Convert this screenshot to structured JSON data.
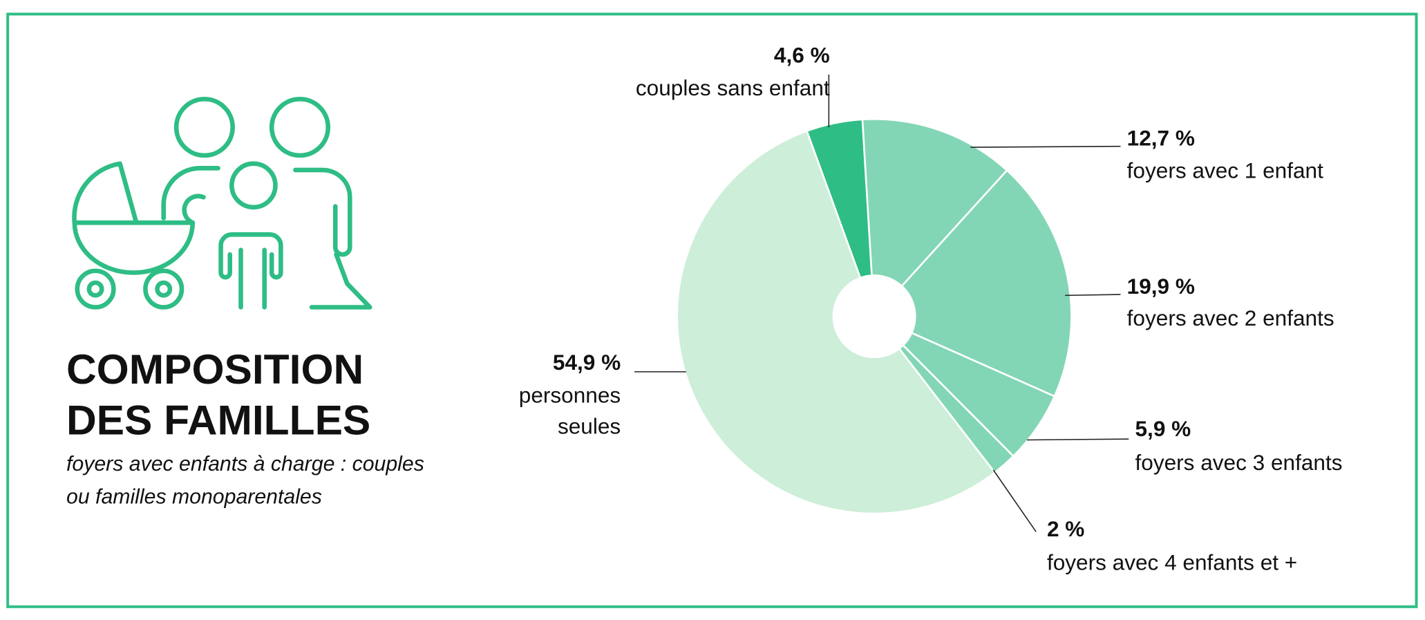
{
  "chart_data": {
    "type": "pie",
    "title": "COMPOSITION DES FAMILLES",
    "subtitle": "foyers avec enfants à charge : couples ou familles monoparentales",
    "categories": [
      "couples sans enfant",
      "foyers avec 1 enfant",
      "foyers avec 2 enfants",
      "foyers avec 3 enfants",
      "foyers avec 4 enfants et +",
      "personnes seules"
    ],
    "values": [
      4.6,
      12.7,
      19.9,
      5.9,
      2,
      54.9
    ],
    "value_labels": [
      "4,6 %",
      "12,7 %",
      "19,9 %",
      "5,9 %",
      "2 %",
      "54,9 %"
    ],
    "colors": [
      "#2ebd85",
      "#82d6b5",
      "#82d6b5",
      "#82d6b5",
      "#82d6b5",
      "#cdeed9"
    ]
  }
}
